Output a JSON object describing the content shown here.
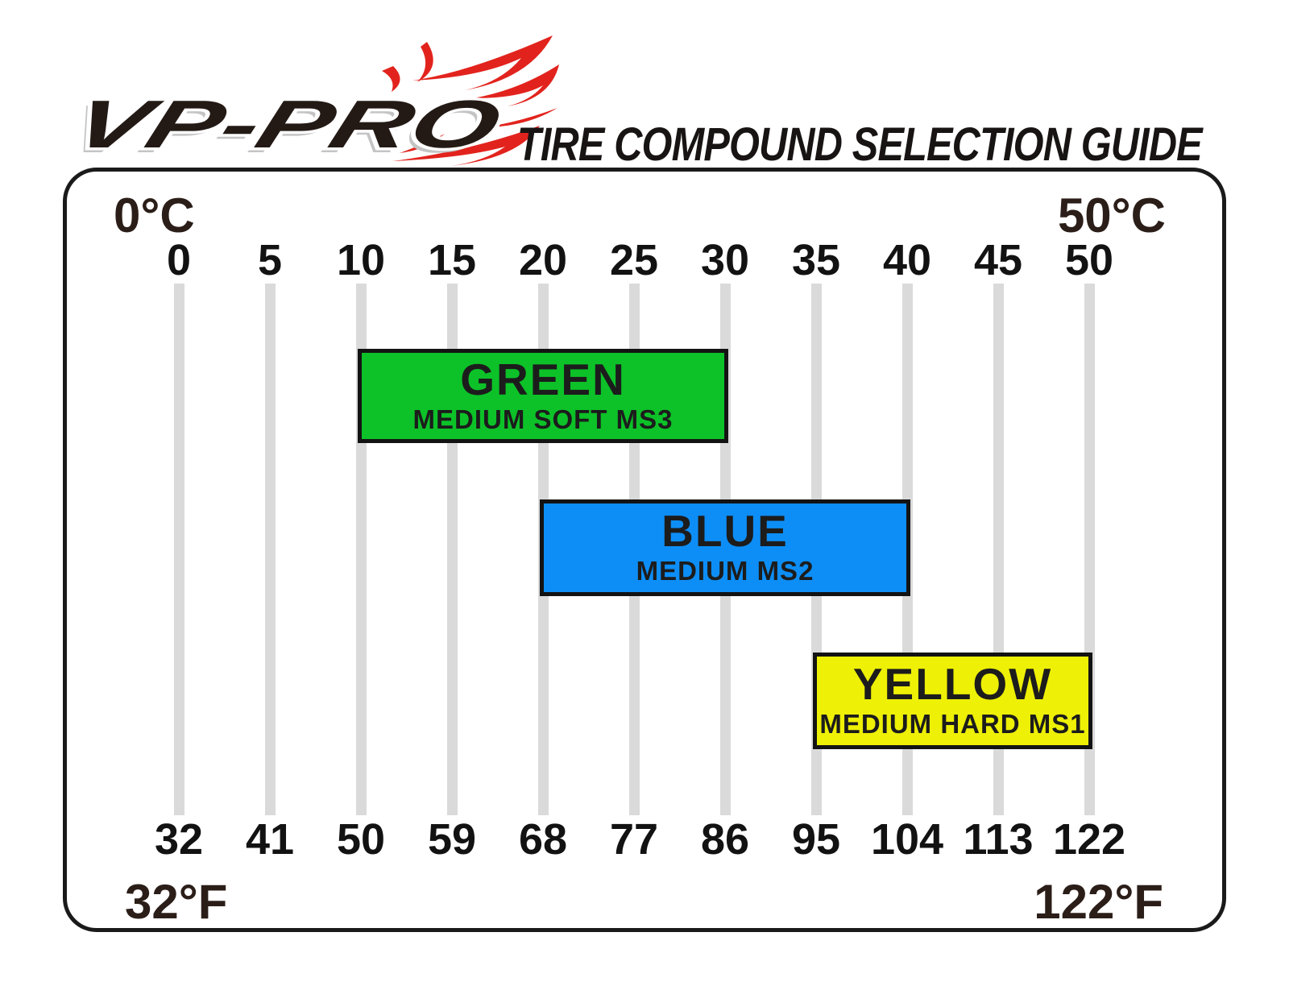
{
  "brand": {
    "logo_text": "VP-PRO",
    "flame_color": "#e2231d",
    "logo_text_color": "#241a15"
  },
  "header": {
    "title": "TIRE COMPOUND SELECTION GUIDE"
  },
  "chart_data": {
    "type": "bar",
    "title": "TIRE COMPOUND SELECTION GUIDE",
    "orientation": "horizontal-range",
    "grid": true,
    "gridline_color": "#dadada",
    "axis_range_celsius": [
      0,
      50
    ],
    "x_axis_top": {
      "unit": "°C",
      "corner_left": "0°C",
      "corner_right": "50°C",
      "ticks": [
        0,
        5,
        10,
        15,
        20,
        25,
        30,
        35,
        40,
        45,
        50
      ]
    },
    "x_axis_bottom": {
      "unit": "°F",
      "corner_left": "32°F",
      "corner_right": "122°F",
      "ticks": [
        32,
        41,
        50,
        59,
        68,
        77,
        86,
        95,
        104,
        113,
        122
      ]
    },
    "bars": [
      {
        "label": "GREEN",
        "sublabel": "MEDIUM SOFT MS3",
        "range_celsius": [
          10,
          30
        ],
        "range_fahrenheit": [
          50,
          86
        ],
        "color": "#0cc228"
      },
      {
        "label": "BLUE",
        "sublabel": "MEDIUM MS2",
        "range_celsius": [
          20,
          40
        ],
        "range_fahrenheit": [
          68,
          104
        ],
        "color": "#0d8ef6"
      },
      {
        "label": "YELLOW",
        "sublabel": "MEDIUM HARD MS1",
        "range_celsius": [
          35,
          50
        ],
        "range_fahrenheit": [
          95,
          122
        ],
        "color": "#eef005"
      }
    ]
  }
}
